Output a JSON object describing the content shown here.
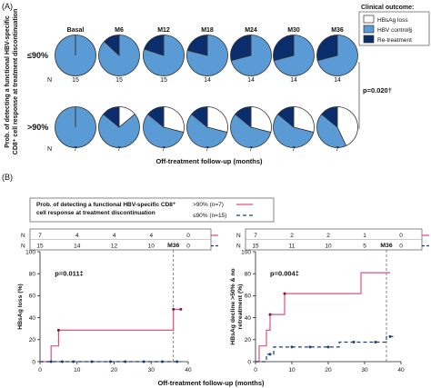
{
  "panel_a": {
    "label": "(A)",
    "ylabel_line1": "Prob. of detecting a functional HBV-specific",
    "ylabel_line2": "CD8⁺ cell response at treatment discontinuation",
    "xlabel": "Off-treatment follow-up (months)",
    "pvalue": "p=0.020†",
    "n_label": "N",
    "legend": {
      "title": "Clinical outcome:",
      "items": [
        "HBsAg loss",
        "HBV control§",
        "Re-treatment"
      ],
      "colors": [
        "#ffffff",
        "#5b9bd5",
        "#0c2d6b"
      ]
    }
  },
  "panel_b": {
    "label": "(B)",
    "legend_title_line1": "Prob. of detecting a functional HBV-specific CD8⁺",
    "legend_title_line2": "cell response at treatment discontinuation",
    "xlabel": "Off-treatment follow-up (months)"
  },
  "chart_data": [
    {
      "type": "pie",
      "title": "",
      "categories": [
        "Basal",
        "M6",
        "M12",
        "M18",
        "M24",
        "M30",
        "M36"
      ],
      "slice_labels": [
        "HBsAg loss",
        "HBV control§",
        "Re-treatment"
      ],
      "colors": [
        "#ffffff",
        "#5b9bd5",
        "#0c2d6b"
      ],
      "groups": [
        {
          "name": "≤90%",
          "n": [
            15,
            15,
            15,
            14,
            14,
            14,
            14
          ],
          "proportions": [
            [
              0,
              1,
              0
            ],
            [
              0,
              0.87,
              0.13
            ],
            [
              0,
              0.8,
              0.2
            ],
            [
              0,
              0.79,
              0.21
            ],
            [
              0,
              0.71,
              0.29
            ],
            [
              0,
              0.71,
              0.29
            ],
            [
              0,
              0.71,
              0.29
            ]
          ]
        },
        {
          "name": ">90%",
          "n": [
            7,
            7,
            7,
            7,
            7,
            7,
            7
          ],
          "proportions": [
            [
              0,
              1,
              0
            ],
            [
              0.14,
              0.72,
              0.14
            ],
            [
              0.29,
              0.57,
              0.14
            ],
            [
              0.29,
              0.57,
              0.14
            ],
            [
              0.29,
              0.57,
              0.14
            ],
            [
              0.29,
              0.57,
              0.14
            ],
            [
              0.43,
              0.43,
              0.14
            ]
          ]
        }
      ]
    },
    {
      "type": "line",
      "title": "",
      "pvalue": "p=0.011‡",
      "annotation": "M36",
      "xlabel": "",
      "ylabel": "HBsAg loss (%)",
      "xlim": [
        0,
        40
      ],
      "ylim": [
        0,
        100
      ],
      "xticks": [
        0,
        10,
        20,
        30,
        40
      ],
      "yticks": [
        0,
        20,
        40,
        60,
        80,
        100
      ],
      "risk_table": {
        "header": "N",
        "times": [
          0,
          10,
          20,
          30,
          40
        ],
        "rows": [
          {
            "name": ">90% (n=7)",
            "values": [
              "7",
              "4",
              "4",
              "4",
              "0"
            ]
          },
          {
            "name": "≤90% (n=15)",
            "values": [
              "15",
              "14",
              "12",
              "10",
              "0"
            ]
          }
        ]
      },
      "series": [
        {
          "name": ">90% (n=7)",
          "color": "#e0527a",
          "style": "solid",
          "x": [
            0,
            3,
            3,
            5,
            5,
            36,
            36,
            38
          ],
          "y": [
            0,
            0,
            14.3,
            14.3,
            28.6,
            28.6,
            47.6,
            47.6
          ],
          "markers": [
            [
              5,
              28.6
            ],
            [
              36,
              47.6
            ],
            [
              38,
              47.6
            ]
          ]
        },
        {
          "name": "≤90% (n=15)",
          "color": "#1f3d7a",
          "style": "dashed",
          "x": [
            0,
            38
          ],
          "y": [
            0,
            0
          ],
          "markers": [
            [
              3,
              0
            ],
            [
              6,
              0
            ],
            [
              9,
              0
            ],
            [
              14,
              0
            ],
            [
              19,
              0
            ],
            [
              23,
              0
            ],
            [
              28,
              0
            ],
            [
              33,
              0
            ],
            [
              37,
              0
            ]
          ]
        }
      ]
    },
    {
      "type": "line",
      "title": "",
      "pvalue": "p=0.004‡",
      "annotation": "M36",
      "xlabel": "",
      "ylabel": "HBsAg decline >50% & no retreatment (%)",
      "xlim": [
        0,
        40
      ],
      "ylim": [
        0,
        100
      ],
      "xticks": [
        0,
        10,
        20,
        30,
        40
      ],
      "yticks": [
        0,
        20,
        40,
        60,
        80,
        100
      ],
      "risk_table": {
        "header": "N",
        "times": [
          0,
          10,
          20,
          30,
          40
        ],
        "rows": [
          {
            "name": ">90% (n=7)",
            "values": [
              "7",
              "2",
              "2",
              "1",
              "0"
            ]
          },
          {
            "name": "≤90% (n=15)",
            "values": [
              "15",
              "11",
              "10",
              "5",
              "0"
            ]
          }
        ]
      },
      "series": [
        {
          "name": ">90% (n=7)",
          "color": "#e0527a",
          "style": "solid",
          "x": [
            0,
            1,
            1,
            3,
            3,
            4,
            4,
            8,
            8,
            29,
            29,
            37
          ],
          "y": [
            0,
            0,
            14.3,
            14.3,
            28.6,
            28.6,
            42.9,
            42.9,
            61.9,
            61.9,
            80.9,
            80.9
          ],
          "markers": [
            [
              4,
              42.9
            ],
            [
              8,
              61.9
            ]
          ]
        },
        {
          "name": "≤90% (n=15)",
          "color": "#1f3d7a",
          "style": "dashed",
          "x": [
            0,
            3,
            3,
            5,
            5,
            23,
            23,
            36,
            36,
            38
          ],
          "y": [
            0,
            0,
            6.7,
            6.7,
            13.3,
            13.3,
            17.8,
            17.8,
            22.8,
            22.8
          ],
          "markers": [
            [
              4,
              6.7
            ],
            [
              10,
              13.3
            ],
            [
              15,
              13.3
            ],
            [
              20,
              13.3
            ],
            [
              27,
              17.8
            ],
            [
              33,
              17.8
            ],
            [
              37,
              22.8
            ]
          ]
        }
      ]
    }
  ]
}
